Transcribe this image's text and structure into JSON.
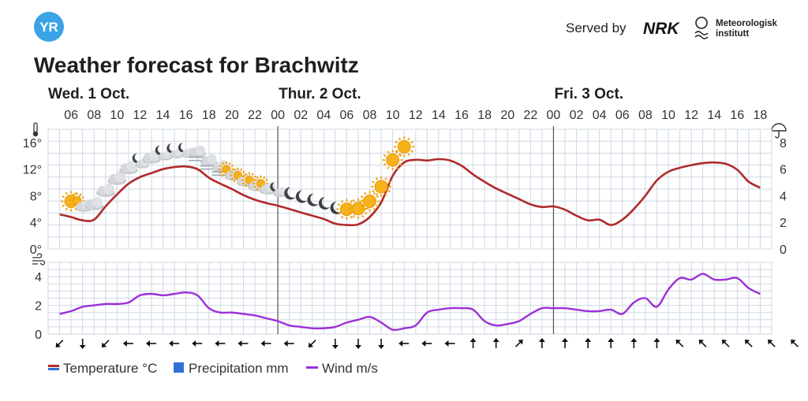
{
  "header": {
    "logo_text": "YR",
    "served_by": "Served by",
    "nrk_text": "NRK",
    "met_line1": "Meteorologisk",
    "met_line2": "institutt",
    "title": "Weather forecast for Brachwitz"
  },
  "colors": {
    "brand": "#3ba4e6",
    "temperature": "#b02a2a",
    "wind": "#9b30d9",
    "precipitation": "#2f6fd6",
    "grid": "#cfd8e3"
  },
  "chart_data": {
    "type": "line",
    "days": [
      {
        "label": "Wed. 1 Oct.",
        "first_hour": 5
      },
      {
        "label": "Thur. 2 Oct.",
        "first_hour": 24
      },
      {
        "label": "Fri. 3 Oct.",
        "first_hour": 48
      }
    ],
    "hour_labels": [
      "06",
      "08",
      "10",
      "12",
      "14",
      "16",
      "18",
      "20",
      "22",
      "00",
      "02",
      "04",
      "06",
      "08",
      "10",
      "12",
      "14",
      "16",
      "18",
      "20",
      "22",
      "00",
      "02",
      "04",
      "06",
      "08",
      "10",
      "12",
      "14",
      "16",
      "18"
    ],
    "temperature": {
      "name": "Temperature °C",
      "unit": "°C",
      "yticks": [
        "0°",
        "4°",
        "8°",
        "12°",
        "16°"
      ],
      "ylim": [
        0,
        18
      ],
      "x": [
        5,
        6,
        7,
        8,
        9,
        10,
        11,
        12,
        13,
        14,
        15,
        16,
        17,
        18,
        19,
        20,
        21,
        22,
        23,
        24,
        25,
        26,
        27,
        28,
        29,
        30,
        31,
        32,
        33,
        34,
        35,
        36,
        37,
        38,
        39,
        40,
        41,
        42,
        43,
        44,
        45,
        46,
        47,
        48,
        49,
        50,
        51,
        52,
        53,
        54,
        55,
        56,
        57,
        58,
        59,
        60,
        61,
        62,
        63,
        64,
        65,
        66
      ],
      "values": [
        5.2,
        4.8,
        4.3,
        4.4,
        6.4,
        8.2,
        9.8,
        10.8,
        11.4,
        12.0,
        12.3,
        12.4,
        12.0,
        10.7,
        9.8,
        9.0,
        8.1,
        7.4,
        6.9,
        6.5,
        6.0,
        5.5,
        5.0,
        4.5,
        3.8,
        3.6,
        3.7,
        4.8,
        7.0,
        11.0,
        13.0,
        13.4,
        13.3,
        13.5,
        13.3,
        12.5,
        11.2,
        10.1,
        9.1,
        8.3,
        7.5,
        6.7,
        6.3,
        6.4,
        5.9,
        5.0,
        4.3,
        4.4,
        3.6,
        4.4,
        6.0,
        8.0,
        10.3,
        11.6,
        12.2,
        12.6,
        12.9,
        13.0,
        12.8,
        11.9,
        10.1,
        9.2
      ]
    },
    "precipitation": {
      "name": "Precipitation mm",
      "unit": "mm",
      "yticks": [
        "0",
        "2",
        "4",
        "6",
        "8"
      ],
      "ylim": [
        0,
        9
      ],
      "values": []
    },
    "wind": {
      "name": "Wind m/s",
      "unit": "m/s",
      "yticks": [
        "0",
        "2",
        "4"
      ],
      "ylim": [
        0,
        5
      ],
      "x": [
        5,
        6,
        7,
        8,
        9,
        10,
        11,
        12,
        13,
        14,
        15,
        16,
        17,
        18,
        19,
        20,
        21,
        22,
        23,
        24,
        25,
        26,
        27,
        28,
        29,
        30,
        31,
        32,
        33,
        34,
        35,
        36,
        37,
        38,
        39,
        40,
        41,
        42,
        43,
        44,
        45,
        46,
        47,
        48,
        49,
        50,
        51,
        52,
        53,
        54,
        55,
        56,
        57,
        58,
        59,
        60,
        61,
        62,
        63,
        64,
        65,
        66
      ],
      "values": [
        1.4,
        1.6,
        1.9,
        2.0,
        2.1,
        2.1,
        2.2,
        2.7,
        2.8,
        2.7,
        2.8,
        2.9,
        2.7,
        1.8,
        1.5,
        1.5,
        1.4,
        1.3,
        1.1,
        0.9,
        0.6,
        0.5,
        0.4,
        0.4,
        0.5,
        0.8,
        1.0,
        1.2,
        0.8,
        0.3,
        0.4,
        0.6,
        1.5,
        1.7,
        1.8,
        1.8,
        1.7,
        0.9,
        0.6,
        0.7,
        0.9,
        1.4,
        1.8,
        1.8,
        1.8,
        1.7,
        1.6,
        1.6,
        1.7,
        1.4,
        2.2,
        2.5,
        1.9,
        3.1,
        3.9,
        3.8,
        4.2,
        3.8,
        3.8,
        3.9,
        3.2,
        2.8
      ]
    },
    "weather_symbols": [
      {
        "hour": 6,
        "symbol": "sun-icon"
      },
      {
        "hour": 7,
        "symbol": "partly-cloudy-day-icon"
      },
      {
        "hour": 8,
        "symbol": "cloud-icon"
      },
      {
        "hour": 9,
        "symbol": "cloud-icon"
      },
      {
        "hour": 10,
        "symbol": "cloud-icon"
      },
      {
        "hour": 11,
        "symbol": "cloud-icon"
      },
      {
        "hour": 12,
        "symbol": "partly-cloudy-night-icon"
      },
      {
        "hour": 13,
        "symbol": "cloud-icon"
      },
      {
        "hour": 14,
        "symbol": "partly-cloudy-night-icon"
      },
      {
        "hour": 15,
        "symbol": "partly-cloudy-night-icon"
      },
      {
        "hour": 16,
        "symbol": "partly-cloudy-night-icon"
      },
      {
        "hour": 17,
        "symbol": "fog-icon"
      },
      {
        "hour": 18,
        "symbol": "fog-icon"
      },
      {
        "hour": 19,
        "symbol": "fog-icon"
      },
      {
        "hour": 20,
        "symbol": "partly-cloudy-day-icon"
      },
      {
        "hour": 21,
        "symbol": "partly-cloudy-day-icon"
      },
      {
        "hour": 22,
        "symbol": "partly-cloudy-day-icon"
      },
      {
        "hour": 23,
        "symbol": "partly-cloudy-day-icon"
      },
      {
        "hour": 24,
        "symbol": "partly-cloudy-night-icon"
      },
      {
        "hour": 25,
        "symbol": "moon-icon"
      },
      {
        "hour": 26,
        "symbol": "moon-icon"
      },
      {
        "hour": 27,
        "symbol": "moon-icon"
      },
      {
        "hour": 28,
        "symbol": "moon-icon"
      },
      {
        "hour": 29,
        "symbol": "moon-icon"
      },
      {
        "hour": 30,
        "symbol": "sun-icon"
      },
      {
        "hour": 31,
        "symbol": "sun-icon"
      },
      {
        "hour": 32,
        "symbol": "sun-icon"
      },
      {
        "hour": 33,
        "symbol": "sun-icon"
      },
      {
        "hour": 34,
        "symbol": "sun-icon"
      },
      {
        "hour": 35,
        "symbol": "sun-icon"
      }
    ],
    "wind_directions_deg": [
      45,
      0,
      45,
      90,
      90,
      90,
      90,
      90,
      90,
      90,
      90,
      45,
      0,
      0,
      0,
      90,
      90,
      90,
      180,
      180,
      225,
      180,
      180,
      180,
      180,
      180,
      180,
      135,
      135,
      135,
      135,
      135,
      135,
      135
    ],
    "legend": [
      {
        "key": "temperature",
        "label": "Temperature °C"
      },
      {
        "key": "precipitation",
        "label": "Precipitation mm"
      },
      {
        "key": "wind",
        "label": "Wind m/s"
      }
    ]
  }
}
